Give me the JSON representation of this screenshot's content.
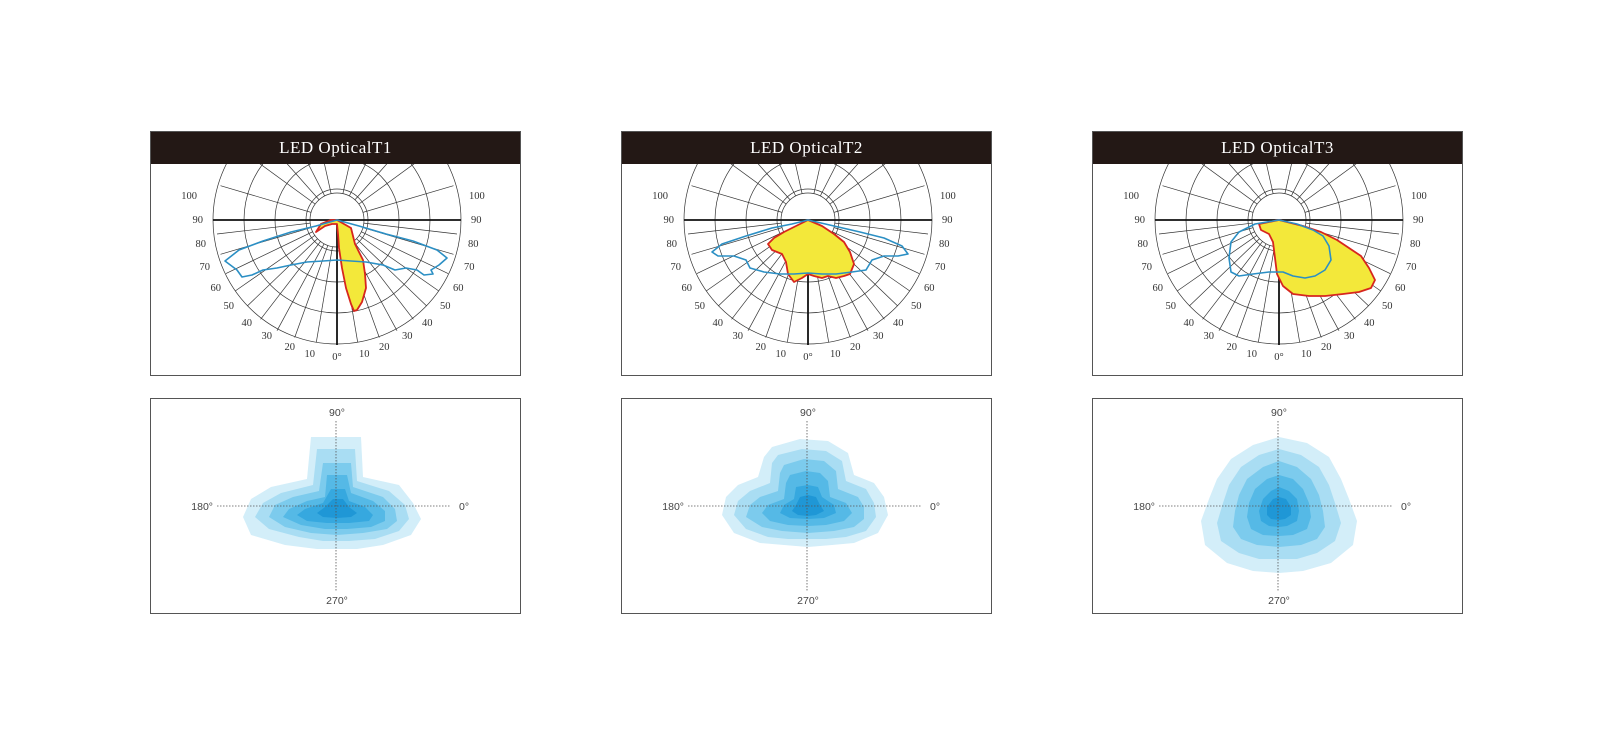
{
  "panels": [
    {
      "title": "LED OpticalT1",
      "polar": {
        "ring_labels": [
          "100",
          "90",
          "80",
          "70",
          "60",
          "50",
          "40",
          "30",
          "20",
          "10",
          "0°",
          "10",
          "20",
          "30",
          "40",
          "50",
          "60",
          "70",
          "80",
          "90",
          "100"
        ]
      },
      "isolux": {
        "axis_labels": {
          "top": "90°",
          "left": "180°",
          "right": "0°",
          "bottom": "270°"
        }
      }
    },
    {
      "title": "LED OpticalT2",
      "polar": {
        "ring_labels": [
          "100",
          "90",
          "80",
          "70",
          "60",
          "50",
          "40",
          "30",
          "20",
          "10",
          "0°",
          "10",
          "20",
          "30",
          "40",
          "50",
          "60",
          "70",
          "80",
          "90",
          "100"
        ]
      },
      "isolux": {
        "axis_labels": {
          "top": "90°",
          "left": "180°",
          "right": "0°",
          "bottom": "270°"
        }
      }
    },
    {
      "title": "LED OpticalT3",
      "polar": {
        "ring_labels": [
          "100",
          "90",
          "80",
          "70",
          "60",
          "50",
          "40",
          "30",
          "20",
          "10",
          "0°",
          "10",
          "20",
          "30",
          "40",
          "50",
          "60",
          "70",
          "80",
          "90",
          "100"
        ]
      },
      "isolux": {
        "axis_labels": {
          "top": "90°",
          "left": "180°",
          "right": "0°",
          "bottom": "270°"
        }
      }
    }
  ],
  "colors": {
    "title_bar": "#231815",
    "grid": "#333333",
    "curve_c0": "#d7261e",
    "curve_c0_fill": "#f3e83a",
    "curve_c90": "#2b8fc4",
    "iso_levels": [
      "#d3eef9",
      "#a9ddf3",
      "#7ccbed",
      "#55b9e6",
      "#36a8df",
      "#1f97d6"
    ]
  }
}
